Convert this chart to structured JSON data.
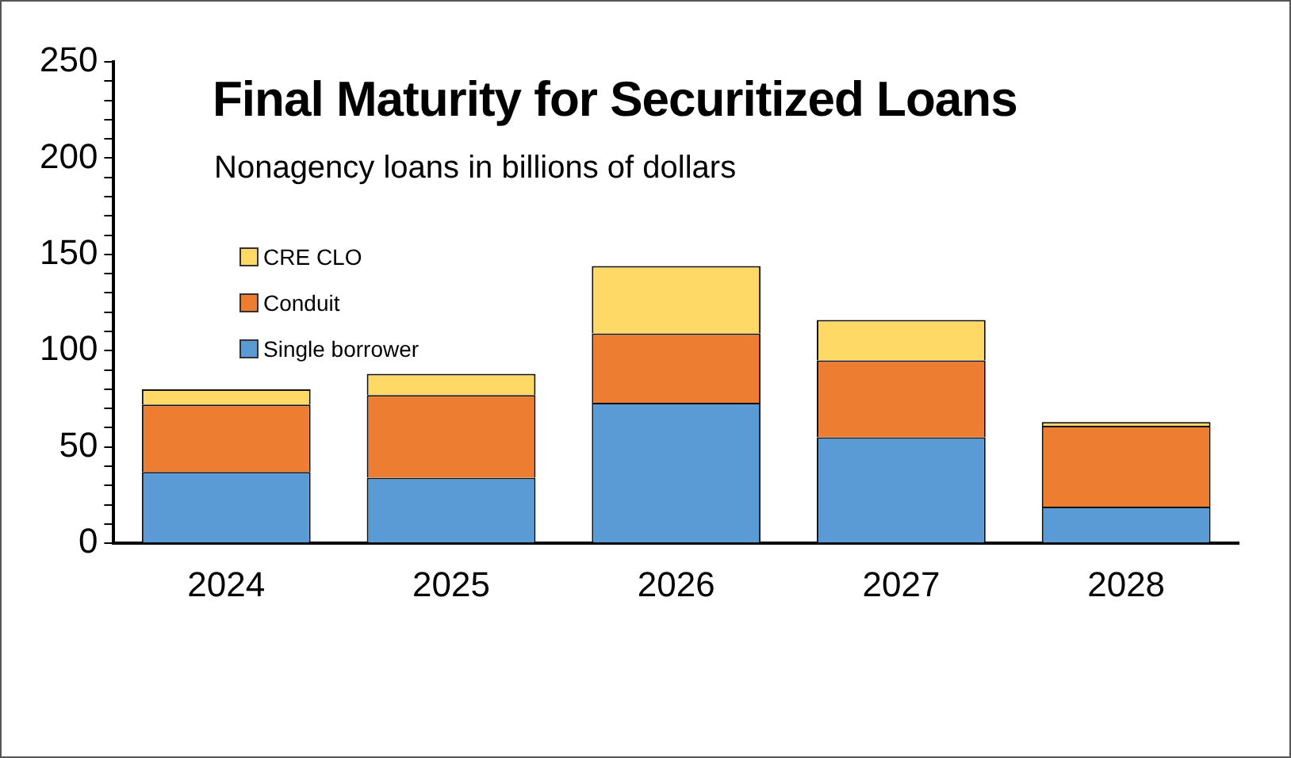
{
  "chart_data": {
    "type": "bar",
    "title": "Final Maturity for Securitized Loans",
    "subtitle": "Nonagency loans in billions of dollars",
    "categories": [
      "2024",
      "2025",
      "2026",
      "2027",
      "2028"
    ],
    "stacked": true,
    "series": [
      {
        "name": "Single borrower",
        "color": "#5b9bd5",
        "values": [
          37,
          34,
          73,
          55,
          19
        ]
      },
      {
        "name": "Conduit",
        "color": "#ed7d31",
        "values": [
          35,
          43,
          36,
          40,
          42
        ]
      },
      {
        "name": "CRE CLO",
        "color": "#ffd966",
        "values": [
          8,
          11,
          35,
          21,
          2
        ]
      }
    ],
    "ylim": [
      0,
      250
    ],
    "yticks": [
      0,
      {
        "value": 10,
        "label": null
      },
      {
        "value": 20,
        "label": null
      },
      {
        "value": 30,
        "label": null
      },
      {
        "value": 40,
        "label": null
      },
      50,
      {
        "value": 60,
        "label": null
      },
      {
        "value": 70,
        "label": null
      },
      {
        "value": 80,
        "label": null
      },
      {
        "value": 90,
        "label": null
      },
      100,
      {
        "value": 110,
        "label": null
      },
      {
        "value": 120,
        "label": null
      },
      {
        "value": 130,
        "label": null
      },
      {
        "value": 140,
        "label": null
      },
      150,
      {
        "value": 160,
        "label": null
      },
      {
        "value": 170,
        "label": null
      },
      {
        "value": 180,
        "label": null
      },
      {
        "value": 190,
        "label": null
      },
      200,
      {
        "value": 210,
        "label": null
      },
      {
        "value": 220,
        "label": null
      },
      {
        "value": 230,
        "label": null
      },
      {
        "value": 240,
        "label": null
      },
      250
    ],
    "grid": false,
    "legend": "left"
  }
}
